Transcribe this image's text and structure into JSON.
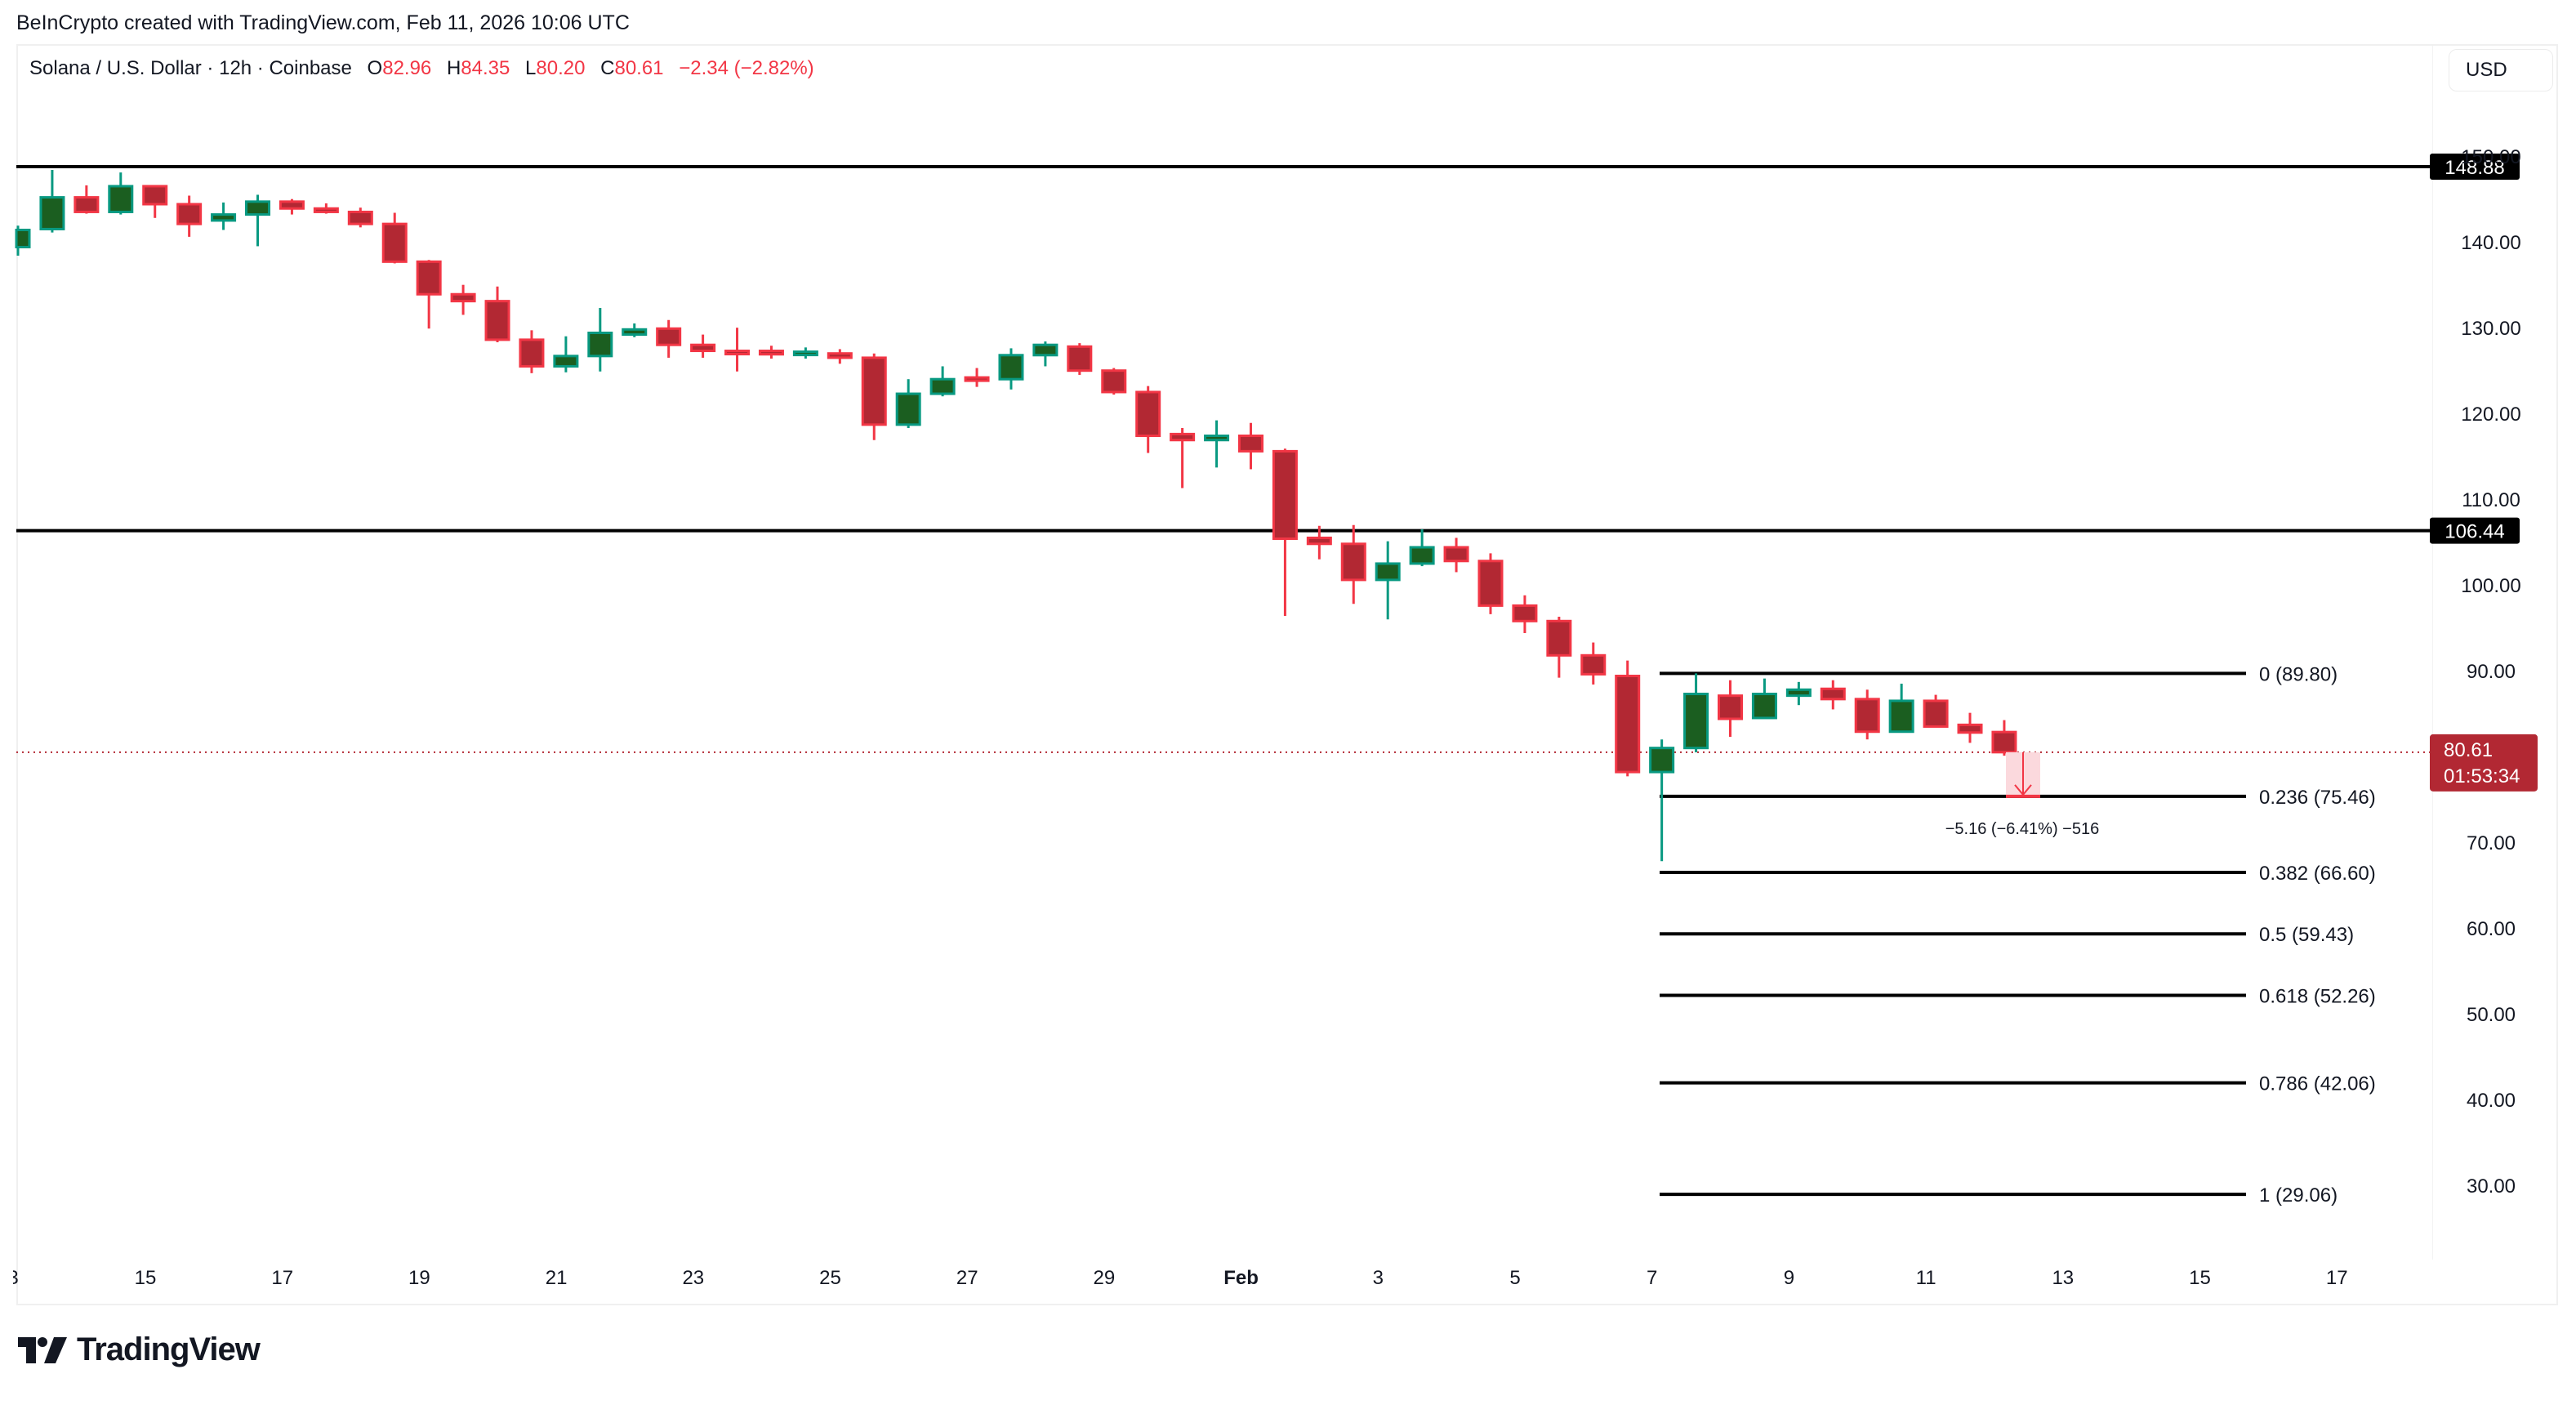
{
  "credit": "BeInCrypto created with TradingView.com, Feb 11, 2026 10:06 UTC",
  "legend": {
    "symbol": "Solana / U.S. Dollar · 12h · Coinbase",
    "open_label": "O",
    "open": "82.96",
    "high_label": "H",
    "high": "84.35",
    "low_label": "L",
    "low": "80.20",
    "close_label": "C",
    "close": "80.61",
    "change": "−2.34 (−2.82%)"
  },
  "currency_button": "USD",
  "logo_text": "TradingView",
  "colors": {
    "up_body": "#1b5e20",
    "up_border": "#089981",
    "down_body": "#b22833",
    "down_border": "#f23645",
    "level_line": "#000000",
    "price_line": "#b22833",
    "measure_fill": "#fbd9dd",
    "axis_text": "#131722"
  },
  "chart_data": {
    "type": "candlestick",
    "title": "Solana / U.S. Dollar · 12h · Coinbase",
    "xlabel": "",
    "ylabel": "USD",
    "ylim": [
      22,
      155
    ],
    "grid": false,
    "y_ticks": [
      "150.00",
      "140.00",
      "130.00",
      "120.00",
      "110.00",
      "100.00",
      "90.00",
      "70.00",
      "60.00",
      "50.00",
      "40.00",
      "30.00"
    ],
    "y_tick_values": [
      150,
      140,
      130,
      120,
      110,
      100,
      90,
      70,
      60,
      50,
      40,
      30
    ],
    "x_ticks": [
      {
        "label": "15",
        "bold": false
      },
      {
        "label": "17",
        "bold": false
      },
      {
        "label": "19",
        "bold": false
      },
      {
        "label": "21",
        "bold": false
      },
      {
        "label": "23",
        "bold": false
      },
      {
        "label": "25",
        "bold": false
      },
      {
        "label": "27",
        "bold": false
      },
      {
        "label": "29",
        "bold": false
      },
      {
        "label": "Feb",
        "bold": true
      },
      {
        "label": "3",
        "bold": false
      },
      {
        "label": "5",
        "bold": false
      },
      {
        "label": "7",
        "bold": false
      },
      {
        "label": "9",
        "bold": false
      },
      {
        "label": "11",
        "bold": false
      },
      {
        "label": "13",
        "bold": false
      },
      {
        "label": "15",
        "bold": false
      },
      {
        "label": "17",
        "bold": false
      }
    ],
    "candles": [
      [
        139.5,
        142.0,
        138.5,
        141.5
      ],
      [
        141.6,
        148.5,
        141.2,
        145.3
      ],
      [
        145.3,
        146.7,
        143.4,
        143.6
      ],
      [
        143.6,
        148.2,
        143.3,
        146.6
      ],
      [
        146.6,
        146.6,
        142.9,
        144.5
      ],
      [
        144.5,
        145.5,
        140.7,
        142.2
      ],
      [
        142.6,
        144.7,
        141.5,
        143.3
      ],
      [
        143.3,
        145.6,
        139.6,
        144.8
      ],
      [
        144.8,
        145.1,
        143.3,
        144.0
      ],
      [
        144.0,
        144.6,
        143.4,
        143.6
      ],
      [
        143.6,
        144.1,
        141.8,
        142.2
      ],
      [
        142.2,
        143.5,
        137.6,
        137.8
      ],
      [
        137.8,
        138.0,
        130.0,
        134.0
      ],
      [
        134.0,
        135.1,
        131.6,
        133.2
      ],
      [
        133.2,
        134.9,
        128.4,
        128.7
      ],
      [
        128.7,
        129.8,
        124.8,
        125.6
      ],
      [
        125.6,
        129.1,
        124.9,
        126.8
      ],
      [
        126.8,
        132.4,
        125.0,
        129.5
      ],
      [
        129.3,
        130.6,
        129.0,
        129.9
      ],
      [
        130.0,
        131.0,
        126.6,
        128.1
      ],
      [
        128.1,
        129.3,
        126.6,
        127.4
      ],
      [
        127.4,
        130.1,
        125.0,
        127.2
      ],
      [
        127.4,
        128.0,
        126.5,
        127.0
      ],
      [
        127.1,
        127.8,
        126.5,
        127.3
      ],
      [
        127.1,
        127.6,
        125.9,
        126.6
      ],
      [
        126.6,
        127.1,
        117.0,
        118.8
      ],
      [
        118.8,
        124.1,
        118.4,
        122.4
      ],
      [
        122.4,
        125.6,
        122.1,
        124.1
      ],
      [
        124.3,
        125.4,
        123.2,
        124.1
      ],
      [
        124.1,
        127.7,
        122.9,
        126.9
      ],
      [
        126.9,
        128.5,
        125.6,
        128.1
      ],
      [
        127.9,
        128.3,
        124.6,
        125.1
      ],
      [
        125.1,
        125.4,
        122.3,
        122.6
      ],
      [
        122.6,
        123.3,
        115.5,
        117.5
      ],
      [
        117.7,
        118.4,
        111.4,
        117.0
      ],
      [
        117.0,
        119.3,
        113.8,
        117.5
      ],
      [
        117.5,
        119.0,
        113.6,
        115.7
      ],
      [
        115.7,
        116.0,
        96.5,
        105.5
      ],
      [
        105.6,
        107.0,
        103.1,
        104.9
      ],
      [
        104.9,
        107.1,
        97.9,
        100.7
      ],
      [
        100.7,
        105.2,
        96.1,
        102.6
      ],
      [
        102.6,
        106.6,
        102.3,
        104.5
      ],
      [
        104.5,
        105.6,
        101.6,
        102.9
      ],
      [
        102.9,
        103.8,
        96.7,
        97.7
      ],
      [
        97.7,
        98.9,
        94.5,
        95.9
      ],
      [
        95.9,
        96.4,
        89.3,
        91.9
      ],
      [
        91.9,
        93.4,
        88.5,
        89.7
      ],
      [
        89.5,
        91.3,
        77.8,
        78.3
      ],
      [
        78.3,
        82.1,
        67.9,
        81.1
      ],
      [
        81.1,
        89.8,
        80.6,
        87.4
      ],
      [
        87.2,
        89.0,
        82.4,
        84.5
      ],
      [
        84.6,
        89.2,
        84.5,
        87.4
      ],
      [
        87.2,
        88.8,
        86.1,
        87.9
      ],
      [
        88.0,
        89.0,
        85.6,
        86.8
      ],
      [
        86.8,
        87.9,
        82.1,
        83.0
      ],
      [
        83.0,
        88.6,
        83.0,
        86.6
      ],
      [
        86.6,
        87.3,
        83.6,
        83.6
      ],
      [
        83.8,
        85.2,
        81.7,
        82.9
      ],
      [
        82.96,
        84.35,
        80.2,
        80.61
      ]
    ],
    "candle_format": "[open, high, low, close]",
    "horizontal_levels": [
      {
        "price": 148.88,
        "label": "148.88"
      },
      {
        "price": 106.44,
        "label": "106.44"
      }
    ],
    "fibonacci_retracement": [
      {
        "ratio": "0",
        "price": 89.8,
        "label": "0 (89.80)"
      },
      {
        "ratio": "0.236",
        "price": 75.46,
        "label": "0.236 (75.46)"
      },
      {
        "ratio": "0.382",
        "price": 66.6,
        "label": "0.382 (66.60)"
      },
      {
        "ratio": "0.5",
        "price": 59.43,
        "label": "0.5 (59.43)"
      },
      {
        "ratio": "0.618",
        "price": 52.26,
        "label": "0.618 (52.26)"
      },
      {
        "ratio": "0.786",
        "price": 42.06,
        "label": "0.786 (42.06)"
      },
      {
        "ratio": "1",
        "price": 29.06,
        "label": "1 (29.06)"
      }
    ],
    "current_price": {
      "price": 80.61,
      "label": "80.61",
      "countdown": "01:53:34"
    },
    "measurement": {
      "from": 80.61,
      "to": 75.46,
      "label": "−5.16 (−6.41%) −516"
    }
  }
}
